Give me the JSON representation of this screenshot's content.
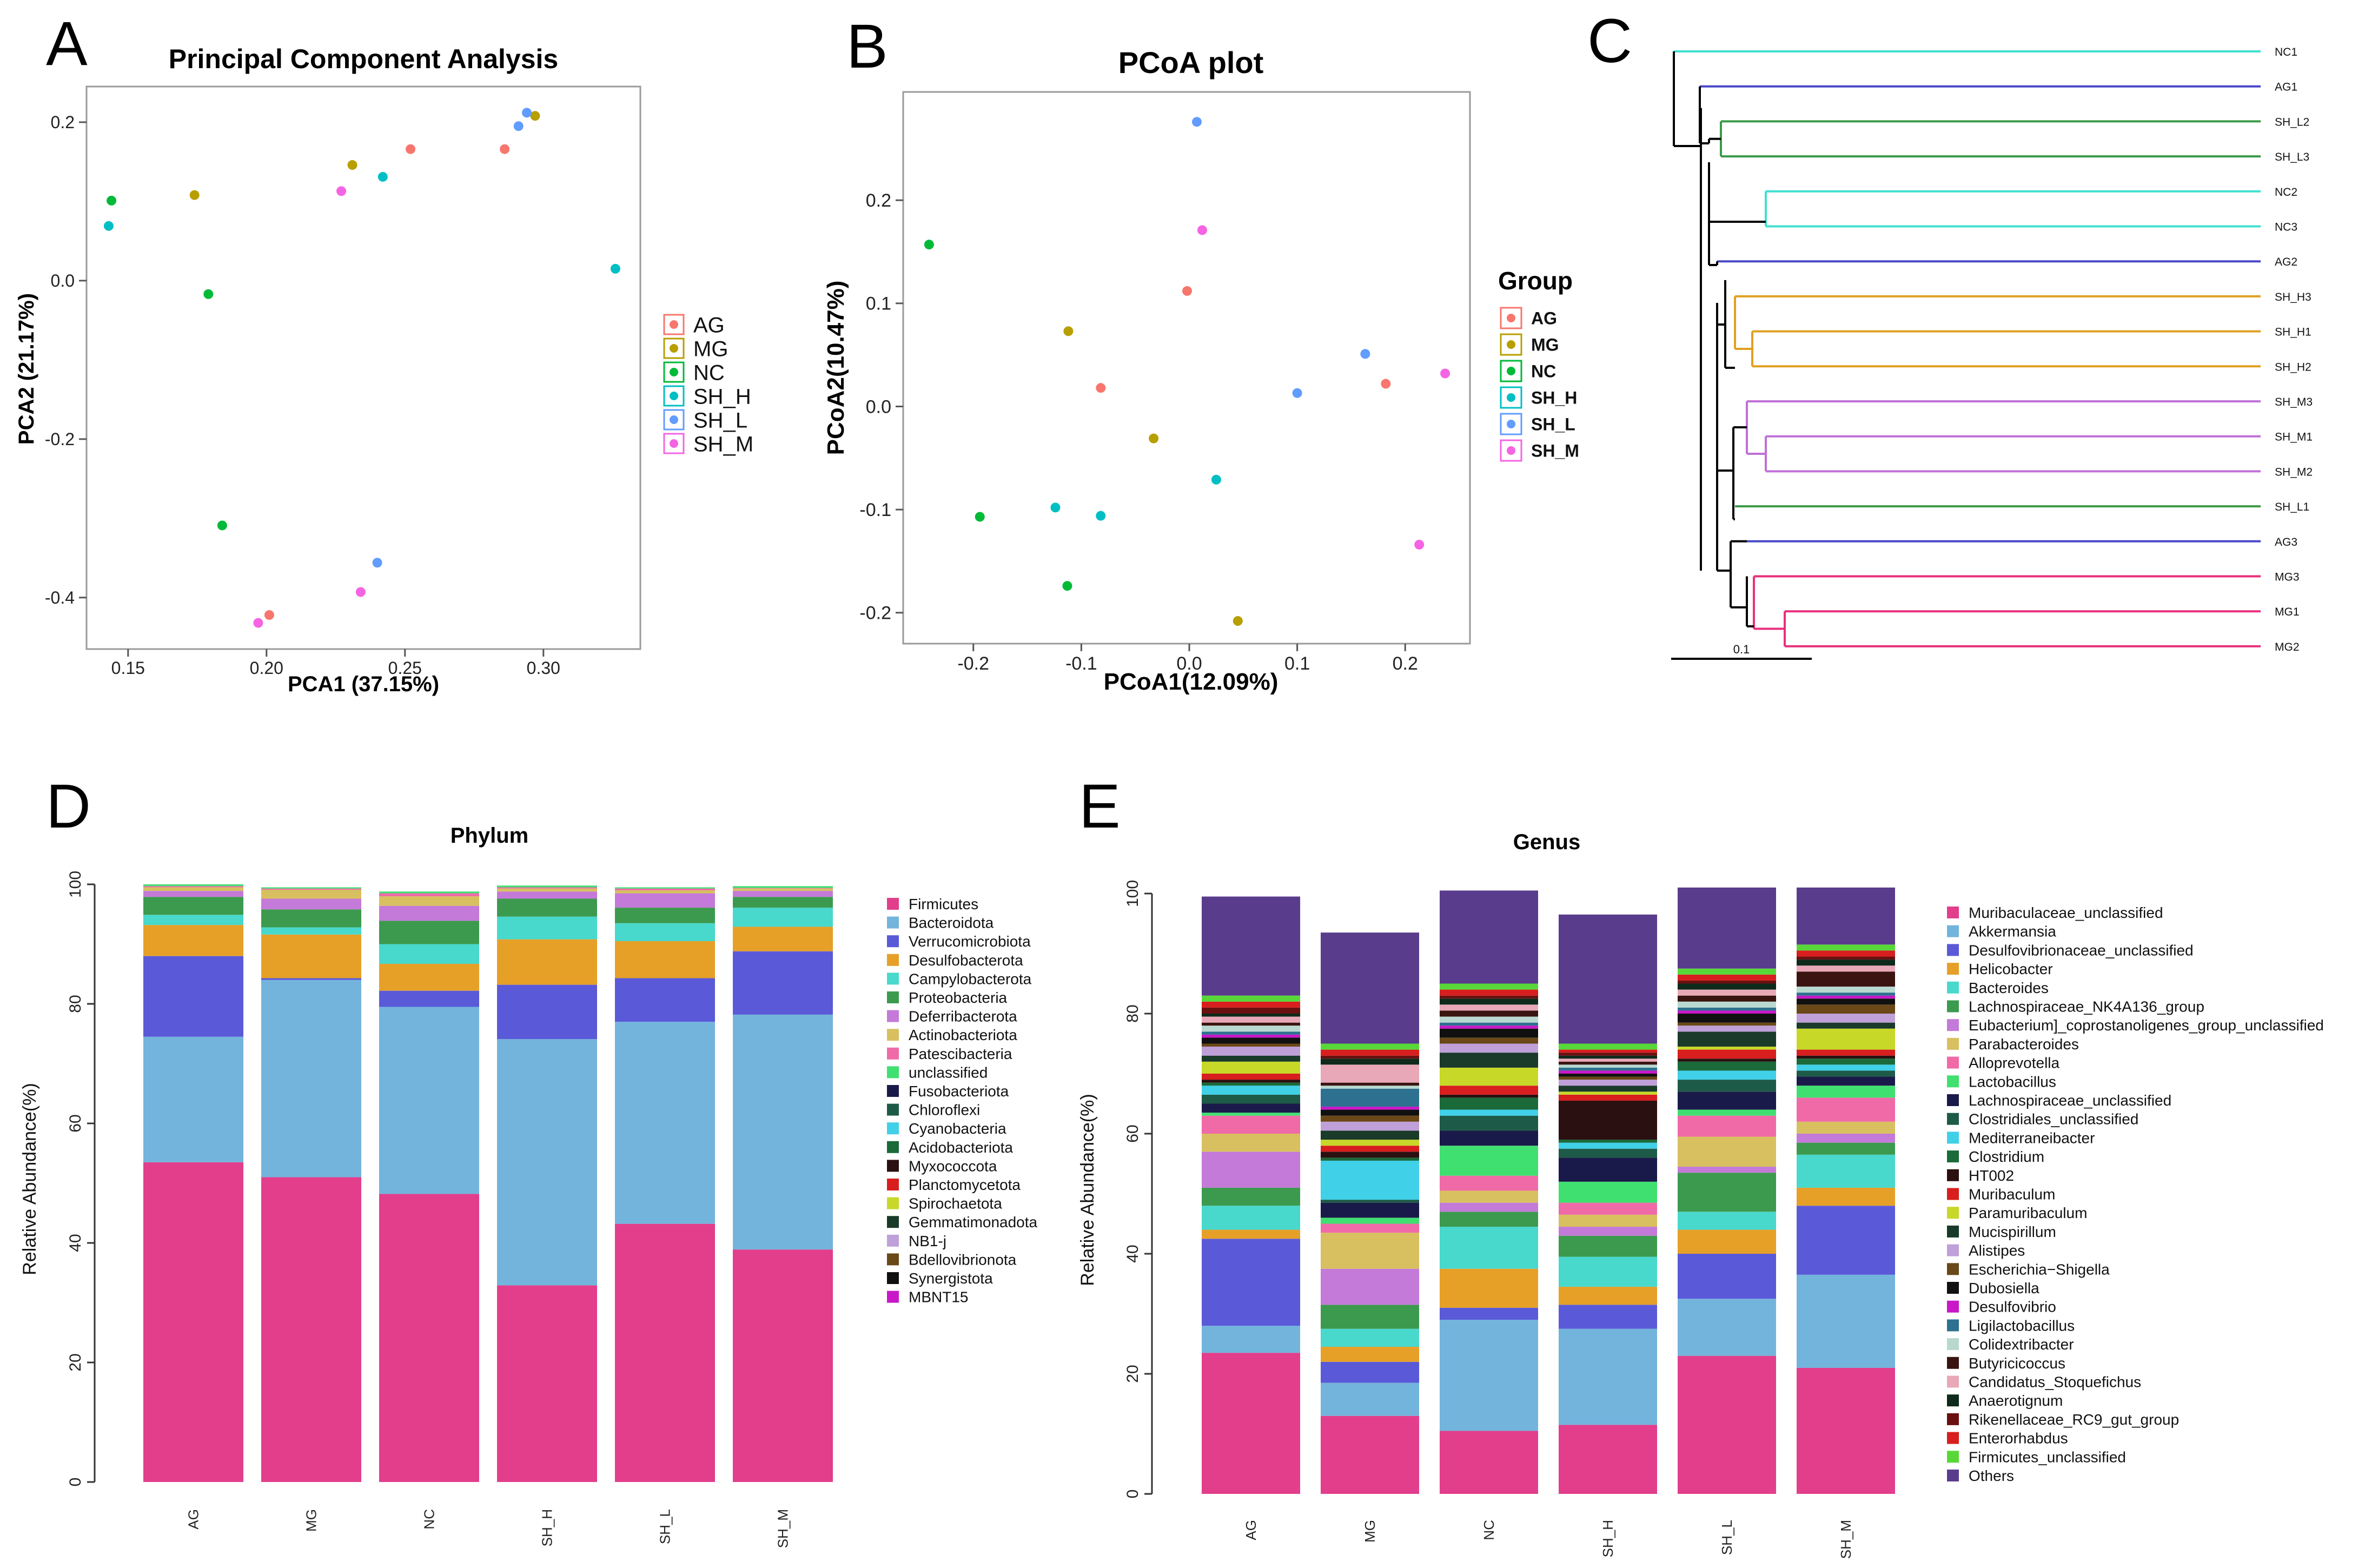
{
  "chart_data": [
    {
      "panel": "A",
      "type": "scatter",
      "title": "Principal Component Analysis",
      "xlabel": "PCA1 (37.15%)",
      "ylabel": "PCA2 (21.17%)",
      "xlim": [
        0.135,
        0.335
      ],
      "ylim": [
        -0.465,
        0.245
      ],
      "xticks": [
        0.15,
        0.2,
        0.25,
        0.3
      ],
      "xtick_labels": [
        "0.15",
        "0.20",
        "0.25",
        "0.30"
      ],
      "yticks": [
        0.2,
        0.0,
        -0.2,
        -0.4
      ],
      "ytick_labels": [
        "0.2",
        "0.0",
        "-0.2",
        "-0.4"
      ],
      "legend_title": "",
      "series": [
        {
          "name": "AG",
          "color": "#F8766D",
          "points": [
            [
              0.252,
              0.166
            ],
            [
              0.286,
              0.166
            ],
            [
              0.201,
              -0.422
            ]
          ]
        },
        {
          "name": "MG",
          "color": "#B79F00",
          "points": [
            [
              0.174,
              0.108
            ],
            [
              0.231,
              0.146
            ],
            [
              0.297,
              0.208
            ]
          ]
        },
        {
          "name": "NC",
          "color": "#00BA38",
          "points": [
            [
              0.144,
              0.101
            ],
            [
              0.179,
              -0.017
            ],
            [
              0.184,
              -0.309
            ]
          ]
        },
        {
          "name": "SH_H",
          "color": "#00BFC4",
          "points": [
            [
              0.143,
              0.069
            ],
            [
              0.242,
              0.131
            ],
            [
              0.326,
              0.015
            ]
          ]
        },
        {
          "name": "SH_L",
          "color": "#619CFF",
          "points": [
            [
              0.291,
              0.195
            ],
            [
              0.294,
              0.212
            ],
            [
              0.24,
              -0.356
            ]
          ]
        },
        {
          "name": "SH_M",
          "color": "#F564E3",
          "points": [
            [
              0.227,
              0.113
            ],
            [
              0.234,
              -0.393
            ],
            [
              0.197,
              -0.432
            ]
          ]
        }
      ]
    },
    {
      "panel": "B",
      "type": "scatter",
      "title": "PCoA plot",
      "xlabel": "PCoA1(12.09%)",
      "ylabel": "PCoA2(10.47%)",
      "xlim": [
        -0.265,
        0.26
      ],
      "ylim": [
        -0.23,
        0.305
      ],
      "xticks": [
        -0.2,
        -0.1,
        0.0,
        0.1,
        0.2
      ],
      "xtick_labels": [
        "-0.2",
        "-0.1",
        "0.0",
        "0.1",
        "0.2"
      ],
      "yticks": [
        0.2,
        0.1,
        0.0,
        -0.1,
        -0.2
      ],
      "ytick_labels": [
        "0.2",
        "0.1",
        "0.0",
        "-0.1",
        "-0.2"
      ],
      "legend_title": "Group",
      "series": [
        {
          "name": "AG",
          "color": "#F8766D",
          "points": [
            [
              -0.082,
              0.018
            ],
            [
              -0.002,
              0.112
            ],
            [
              0.182,
              0.022
            ]
          ]
        },
        {
          "name": "MG",
          "color": "#B79F00",
          "points": [
            [
              -0.112,
              0.073
            ],
            [
              -0.033,
              -0.031
            ],
            [
              0.045,
              -0.208
            ]
          ]
        },
        {
          "name": "NC",
          "color": "#00BA38",
          "points": [
            [
              -0.241,
              0.157
            ],
            [
              -0.194,
              -0.107
            ],
            [
              -0.113,
              -0.174
            ]
          ]
        },
        {
          "name": "SH_H",
          "color": "#00BFC4",
          "points": [
            [
              -0.124,
              -0.098
            ],
            [
              -0.082,
              -0.106
            ],
            [
              0.025,
              -0.071
            ]
          ]
        },
        {
          "name": "SH_L",
          "color": "#619CFF",
          "points": [
            [
              0.007,
              0.276
            ],
            [
              0.1,
              0.013
            ],
            [
              0.163,
              0.051
            ]
          ]
        },
        {
          "name": "SH_M",
          "color": "#F564E3",
          "points": [
            [
              0.012,
              0.171
            ],
            [
              0.213,
              -0.134
            ],
            [
              0.237,
              0.032
            ]
          ]
        }
      ]
    },
    {
      "panel": "C",
      "type": "dendrogram",
      "scale_label": "0.1",
      "leaves": [
        {
          "label": "NC1",
          "color": "#40E0D0"
        },
        {
          "label": "AG1",
          "color": "#4848C8"
        },
        {
          "label": "SH_L2",
          "color": "#3A9A48"
        },
        {
          "label": "SH_L3",
          "color": "#3A9A48"
        },
        {
          "label": "NC2",
          "color": "#40E0D0"
        },
        {
          "label": "NC3",
          "color": "#40E0D0"
        },
        {
          "label": "AG2",
          "color": "#4848C8"
        },
        {
          "label": "SH_H3",
          "color": "#E0A020"
        },
        {
          "label": "SH_H1",
          "color": "#E0A020"
        },
        {
          "label": "SH_H2",
          "color": "#E0A020"
        },
        {
          "label": "SH_M3",
          "color": "#C070D8"
        },
        {
          "label": "SH_M1",
          "color": "#C070D8"
        },
        {
          "label": "SH_M2",
          "color": "#C070D8"
        },
        {
          "label": "SH_L1",
          "color": "#3A9A48"
        },
        {
          "label": "AG3",
          "color": "#4848C8"
        },
        {
          "label": "MG3",
          "color": "#E8307C"
        },
        {
          "label": "MG1",
          "color": "#E8307C"
        },
        {
          "label": "MG2",
          "color": "#E8307C"
        }
      ]
    },
    {
      "panel": "D",
      "type": "bar",
      "stacked": true,
      "title": "Phylum",
      "xlabel": "",
      "ylabel": "Relative Abundance(%)",
      "ylim": [
        0,
        100
      ],
      "yticks": [
        0,
        20,
        40,
        60,
        80,
        100
      ],
      "categories": [
        "AG",
        "MG",
        "NC",
        "SH_H",
        "SH_L",
        "SH_M"
      ],
      "series": [
        {
          "name": "Firmicutes",
          "color": "#E23E8C",
          "values": [
            53.5,
            51.0,
            48.2,
            32.9,
            43.2,
            38.9
          ]
        },
        {
          "name": "Bacteroidota",
          "color": "#73B4DC",
          "values": [
            21.0,
            33.0,
            31.3,
            41.2,
            33.8,
            39.3
          ]
        },
        {
          "name": "Verrucomicrobiota",
          "color": "#5A5AD8",
          "values": [
            13.5,
            0.3,
            2.7,
            9.1,
            7.3,
            10.6
          ]
        },
        {
          "name": "Desulfobacterota",
          "color": "#E6A028",
          "values": [
            5.2,
            7.3,
            4.5,
            7.6,
            6.2,
            4.1
          ]
        },
        {
          "name": "Campylobacterota",
          "color": "#48D8CC",
          "values": [
            1.7,
            1.2,
            3.3,
            3.8,
            3.0,
            3.2
          ]
        },
        {
          "name": "Proteobacteria",
          "color": "#3C9A4E",
          "values": [
            3.0,
            3.0,
            3.9,
            3.0,
            2.6,
            1.8
          ]
        },
        {
          "name": "Deferribacterota",
          "color": "#C47AD8",
          "values": [
            1.0,
            1.8,
            2.5,
            1.2,
            2.4,
            1.0
          ]
        },
        {
          "name": "Actinobacteriota",
          "color": "#D8C060",
          "values": [
            0.6,
            1.5,
            1.6,
            0.5,
            0.5,
            0.4
          ]
        },
        {
          "name": "Patescibacteria",
          "color": "#F06AA8",
          "values": [
            0.2,
            0.2,
            0.5,
            0.2,
            0.3,
            0.1
          ]
        },
        {
          "name": "unclassified",
          "color": "#40E070",
          "values": [
            0.3,
            0.2,
            0.3,
            0.3,
            0.2,
            0.3
          ]
        },
        {
          "name": "Fusobacteriota",
          "color": "#1A1A4A",
          "values": [
            0.0,
            0.0,
            0.0,
            0.0,
            0.0,
            0.0
          ]
        },
        {
          "name": "Chloroflexi",
          "color": "#1E5A48",
          "values": [
            0.0,
            0.0,
            0.0,
            0.0,
            0.0,
            0.0
          ]
        },
        {
          "name": "Cyanobacteria",
          "color": "#40D0E8",
          "values": [
            0.0,
            0.0,
            0.0,
            0.0,
            0.0,
            0.0
          ]
        },
        {
          "name": "Acidobacteriota",
          "color": "#1A6A3A",
          "values": [
            0.0,
            0.0,
            0.0,
            0.0,
            0.0,
            0.0
          ]
        },
        {
          "name": "Myxococcota",
          "color": "#2A1010",
          "values": [
            0.0,
            0.0,
            0.0,
            0.0,
            0.0,
            0.0
          ]
        },
        {
          "name": "Planctomycetota",
          "color": "#D81E1E",
          "values": [
            0.0,
            0.0,
            0.0,
            0.0,
            0.0,
            0.0
          ]
        },
        {
          "name": "Spirochaetota",
          "color": "#C8D828",
          "values": [
            0.0,
            0.0,
            0.0,
            0.0,
            0.0,
            0.0
          ]
        },
        {
          "name": "Gemmatimonadota",
          "color": "#1A3A2A",
          "values": [
            0.0,
            0.0,
            0.0,
            0.0,
            0.0,
            0.0
          ]
        },
        {
          "name": "NB1-j",
          "color": "#C0A0D8",
          "values": [
            0.0,
            0.0,
            0.0,
            0.0,
            0.0,
            0.0
          ]
        },
        {
          "name": "Bdellovibrionota",
          "color": "#6A4818",
          "values": [
            0.0,
            0.0,
            0.0,
            0.0,
            0.0,
            0.0
          ]
        },
        {
          "name": "Synergistota",
          "color": "#101010",
          "values": [
            0.0,
            0.0,
            0.0,
            0.0,
            0.0,
            0.0
          ]
        },
        {
          "name": "MBNT15",
          "color": "#C818C8",
          "values": [
            0.0,
            0.0,
            0.0,
            0.0,
            0.0,
            0.0
          ]
        }
      ]
    },
    {
      "panel": "E",
      "type": "bar",
      "stacked": true,
      "title": "Genus",
      "xlabel": "",
      "ylabel": "Relative Abundance(%)",
      "ylim": [
        0,
        100
      ],
      "yticks": [
        0,
        20,
        40,
        60,
        80,
        100
      ],
      "categories": [
        "AG",
        "MG",
        "NC",
        "SH_H",
        "SH_L",
        "SH_M"
      ],
      "series": [
        {
          "name": "Muribaculaceae_unclassified",
          "color": "#E23E8C",
          "values": [
            23.5,
            13.0,
            10.5,
            11.5,
            23.0,
            21.0
          ]
        },
        {
          "name": "Akkermansia",
          "color": "#73B4DC",
          "values": [
            4.5,
            5.5,
            18.5,
            16.0,
            9.5,
            15.5
          ]
        },
        {
          "name": "Desulfovibrionaceae_unclassified",
          "color": "#5A5AD8",
          "values": [
            14.5,
            3.5,
            2.0,
            4.0,
            7.5,
            11.5
          ]
        },
        {
          "name": "Helicobacter",
          "color": "#E6A028",
          "values": [
            1.5,
            2.5,
            6.5,
            3.0,
            4.0,
            3.0
          ]
        },
        {
          "name": "Bacteroides",
          "color": "#48D8CC",
          "values": [
            4.0,
            3.0,
            7.0,
            5.0,
            3.0,
            5.5
          ]
        },
        {
          "name": "Lachnospiraceae_NK4A136_group",
          "color": "#3C9A4E",
          "values": [
            3.0,
            4.0,
            2.5,
            3.5,
            6.5,
            2.0
          ]
        },
        {
          "name": "Eubacterium]_coprostanoligenes_group_unclassified",
          "color": "#C47AD8",
          "values": [
            6.0,
            6.0,
            1.5,
            1.5,
            1.0,
            1.5
          ]
        },
        {
          "name": "Parabacteroides",
          "color": "#D8C060",
          "values": [
            3.0,
            6.0,
            2.0,
            2.0,
            5.0,
            2.0
          ]
        },
        {
          "name": "Alloprevotella",
          "color": "#F06AA8",
          "values": [
            3.0,
            1.5,
            2.5,
            2.0,
            3.5,
            4.0
          ]
        },
        {
          "name": "Lactobacillus",
          "color": "#40E070",
          "values": [
            0.5,
            1.0,
            5.0,
            3.5,
            1.0,
            2.0
          ]
        },
        {
          "name": "Lachnospiraceae_unclassified",
          "color": "#1A1A4A",
          "values": [
            1.5,
            2.5,
            2.5,
            4.0,
            3.0,
            1.5
          ]
        },
        {
          "name": "Clostridiales_unclassified",
          "color": "#1E5A48",
          "values": [
            1.5,
            0.5,
            2.5,
            1.5,
            2.0,
            1.0
          ]
        },
        {
          "name": "Mediterraneibacter",
          "color": "#40D0E8",
          "values": [
            1.5,
            6.5,
            1.0,
            1.0,
            1.5,
            1.0
          ]
        },
        {
          "name": "Clostridium",
          "color": "#1A6A3A",
          "values": [
            0.5,
            0.5,
            2.0,
            0.5,
            1.5,
            1.0
          ]
        },
        {
          "name": "HT002",
          "color": "#2A1010",
          "values": [
            0.5,
            1.0,
            0.5,
            6.5,
            0.5,
            0.5
          ]
        },
        {
          "name": "Muribaculum",
          "color": "#D81E1E",
          "values": [
            1.0,
            1.0,
            1.5,
            1.0,
            1.5,
            1.0
          ]
        },
        {
          "name": "Paramuribaculum",
          "color": "#C8D828",
          "values": [
            2.0,
            1.0,
            3.0,
            0.5,
            0.5,
            3.5
          ]
        },
        {
          "name": "Mucispirillum",
          "color": "#1A3A2A",
          "values": [
            1.0,
            1.5,
            2.5,
            1.0,
            2.5,
            1.0
          ]
        },
        {
          "name": "Alistipes",
          "color": "#C0A0D8",
          "values": [
            1.5,
            1.5,
            1.5,
            1.0,
            1.0,
            1.5
          ]
        },
        {
          "name": "Escherichia−Shigella",
          "color": "#6A4818",
          "values": [
            0.5,
            1.0,
            1.0,
            0.5,
            0.5,
            1.5
          ]
        },
        {
          "name": "Dubosiella",
          "color": "#101010",
          "values": [
            1.0,
            1.0,
            1.5,
            0.5,
            1.5,
            1.0
          ]
        },
        {
          "name": "Desulfovibrio",
          "color": "#C818C8",
          "values": [
            0.5,
            0.5,
            0.5,
            0.5,
            0.5,
            0.5
          ]
        },
        {
          "name": "Ligilactobacillus",
          "color": "#2E7090",
          "values": [
            0.5,
            3.0,
            0.5,
            0.5,
            0.5,
            0.5
          ]
        },
        {
          "name": "Colidextribacter",
          "color": "#B8D8D0",
          "values": [
            1.0,
            0.5,
            1.0,
            0.5,
            1.0,
            1.0
          ]
        },
        {
          "name": "Butyricicoccus",
          "color": "#3A1410",
          "values": [
            0.5,
            0.5,
            1.0,
            0.5,
            1.0,
            2.5
          ]
        },
        {
          "name": "Candidatus_Stoquefichus",
          "color": "#E8A8B8",
          "values": [
            1.0,
            3.0,
            1.0,
            0.5,
            1.0,
            1.0
          ]
        },
        {
          "name": "Anaerotignum",
          "color": "#0E2A1A",
          "values": [
            0.5,
            1.0,
            1.0,
            0.5,
            1.0,
            1.0
          ]
        },
        {
          "name": "Rikenellaceae_RC9_gut_group",
          "color": "#6A1010",
          "values": [
            1.0,
            0.5,
            0.5,
            0.5,
            0.5,
            0.5
          ]
        },
        {
          "name": "Enterorhabdus",
          "color": "#D81E1E",
          "values": [
            1.0,
            1.0,
            1.0,
            0.5,
            1.0,
            1.0
          ]
        },
        {
          "name": "Firmicutes_unclassified",
          "color": "#58D838",
          "values": [
            1.0,
            1.0,
            1.0,
            1.0,
            1.0,
            1.0
          ]
        },
        {
          "name": "Others",
          "color": "#5A3C8C",
          "values": [
            16.5,
            18.5,
            15.5,
            21.5,
            13.5,
            9.5
          ]
        }
      ]
    }
  ]
}
